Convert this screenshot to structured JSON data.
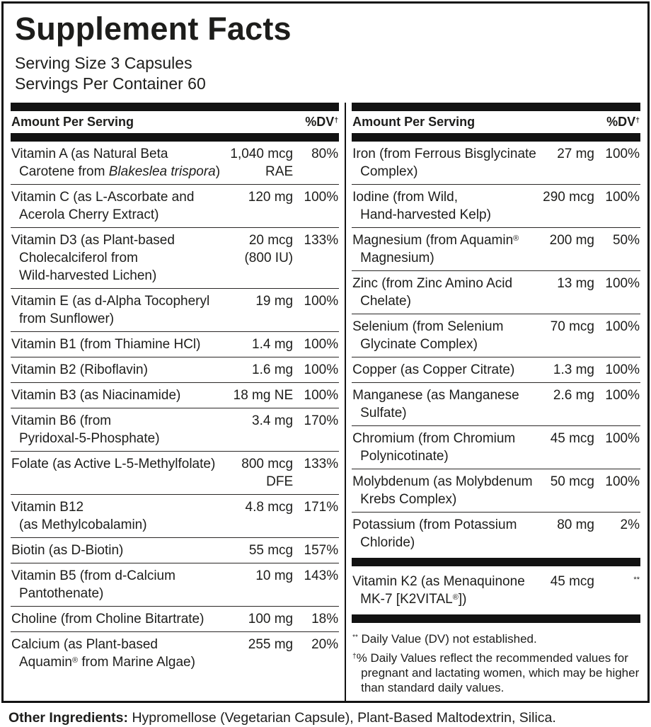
{
  "title": "Supplement Facts",
  "serving": {
    "size": "Serving Size 3 Capsules",
    "per_container": "Servings Per Container 60"
  },
  "table_header": {
    "amount": "Amount Per Serving",
    "dv": "%DV†"
  },
  "left_rows": [
    {
      "name_lines": [
        "Vitamin A (as Natural Beta",
        "Carotene from {i}Blakeslea trispora{/i})"
      ],
      "amount_lines": [
        "1,040 mcg",
        "RAE"
      ],
      "percent": "80%"
    },
    {
      "name_lines": [
        "Vitamin C (as L-Ascorbate and",
        "Acerola Cherry Extract)"
      ],
      "amount_lines": [
        "120 mg"
      ],
      "percent": "100%"
    },
    {
      "name_lines": [
        "Vitamin D3 (as Plant-based",
        "Cholecalciferol from",
        "Wild-harvested Lichen)"
      ],
      "amount_lines": [
        "20 mcg",
        "(800 IU)"
      ],
      "percent": "133%"
    },
    {
      "name_lines": [
        "Vitamin E (as d-Alpha Tocopheryl",
        "from Sunflower)"
      ],
      "amount_lines": [
        "19 mg"
      ],
      "percent": "100%"
    },
    {
      "name_lines": [
        "Vitamin B1 (from Thiamine HCl)"
      ],
      "amount_lines": [
        "1.4 mg"
      ],
      "percent": "100%"
    },
    {
      "name_lines": [
        "Vitamin B2 (Riboflavin)"
      ],
      "amount_lines": [
        "1.6 mg"
      ],
      "percent": "100%"
    },
    {
      "name_lines": [
        "Vitamin B3 (as Niacinamide)"
      ],
      "amount_lines": [
        "18 mg NE"
      ],
      "percent": "100%"
    },
    {
      "name_lines": [
        "Vitamin B6 (from",
        "Pyridoxal-5-Phosphate)"
      ],
      "amount_lines": [
        "3.4 mg"
      ],
      "percent": "170%"
    },
    {
      "name_lines": [
        "Folate (as Active L-5-Methylfolate)"
      ],
      "amount_lines": [
        "800 mcg",
        "DFE"
      ],
      "percent": "133%"
    },
    {
      "name_lines": [
        "Vitamin B12",
        "(as Methylcobalamin)"
      ],
      "amount_lines": [
        "4.8 mcg"
      ],
      "percent": "171%"
    },
    {
      "name_lines": [
        "Biotin (as D-Biotin)"
      ],
      "amount_lines": [
        "55 mcg"
      ],
      "percent": "157%"
    },
    {
      "name_lines": [
        "Vitamin B5 (from d-Calcium",
        "Pantothenate)"
      ],
      "amount_lines": [
        "10 mg"
      ],
      "percent": "143%"
    },
    {
      "name_lines": [
        "Choline (from Choline Bitartrate)"
      ],
      "amount_lines": [
        "100 mg"
      ],
      "percent": "18%"
    },
    {
      "name_lines": [
        "Calcium (as Plant-based",
        "Aquamin® from Marine Algae)"
      ],
      "amount_lines": [
        "255 mg"
      ],
      "percent": "20%"
    }
  ],
  "right_rows": [
    {
      "name_lines": [
        "Iron (from Ferrous Bisglycinate",
        "Complex)"
      ],
      "amount_lines": [
        "27 mg"
      ],
      "percent": "100%"
    },
    {
      "name_lines": [
        "Iodine (from Wild,",
        "Hand-harvested Kelp)"
      ],
      "amount_lines": [
        "290 mcg"
      ],
      "percent": "100%"
    },
    {
      "name_lines": [
        "Magnesium (from Aquamin®",
        "Magnesium)"
      ],
      "amount_lines": [
        "200 mg"
      ],
      "percent": "50%"
    },
    {
      "name_lines": [
        "Zinc (from Zinc Amino Acid",
        "Chelate)"
      ],
      "amount_lines": [
        "13 mg"
      ],
      "percent": "100%"
    },
    {
      "name_lines": [
        "Selenium (from Selenium",
        "Glycinate Complex)"
      ],
      "amount_lines": [
        "70 mcg"
      ],
      "percent": "100%"
    },
    {
      "name_lines": [
        "Copper (as Copper Citrate)"
      ],
      "amount_lines": [
        "1.3 mg"
      ],
      "percent": "100%"
    },
    {
      "name_lines": [
        "Manganese (as Manganese",
        "Sulfate)"
      ],
      "amount_lines": [
        "2.6 mg"
      ],
      "percent": "100%"
    },
    {
      "name_lines": [
        "Chromium (from Chromium",
        "Polynicotinate)"
      ],
      "amount_lines": [
        "45 mcg"
      ],
      "percent": "100%"
    },
    {
      "name_lines": [
        "Molybdenum (as Molybdenum",
        "Krebs Complex)"
      ],
      "amount_lines": [
        "50 mcg"
      ],
      "percent": "100%"
    },
    {
      "name_lines": [
        "Potassium (from Potassium",
        "Chloride)"
      ],
      "amount_lines": [
        "80 mg"
      ],
      "percent": "2%"
    }
  ],
  "right_rows_k2": [
    {
      "name_lines": [
        "Vitamin K2 (as Menaquinone",
        "MK-7 [K2VITAL®])"
      ],
      "amount_lines": [
        "45 mcg"
      ],
      "percent": "**"
    }
  ],
  "footnotes": [
    "** Daily Value (DV) not established.",
    "†% Daily Values reflect the recommended values for pregnant and lactating women, which may be higher than standard daily values."
  ],
  "other_ingredients": {
    "label": "Other Ingredients:",
    "text": " Hypromellose (Vegetarian Capsule), Plant-Based Maltodextrin, Silica."
  },
  "colors": {
    "ink": "#1d1d1b",
    "bar": "#121212",
    "background": "#ffffff"
  }
}
